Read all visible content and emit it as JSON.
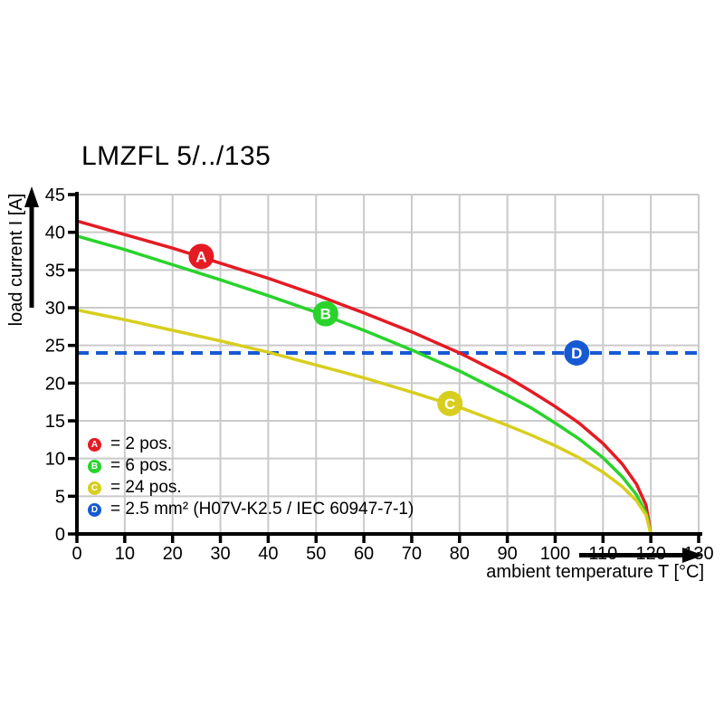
{
  "chart_data": {
    "type": "line",
    "title": "LMZFL 5/../135",
    "xlabel": "ambient temperature T [°C]",
    "ylabel": "load current I [A]",
    "xlim": [
      0,
      130
    ],
    "ylim": [
      0,
      45
    ],
    "x_ticks": [
      0,
      10,
      20,
      30,
      40,
      50,
      60,
      70,
      80,
      90,
      100,
      110,
      120,
      130
    ],
    "y_ticks": [
      0,
      5,
      10,
      15,
      20,
      25,
      30,
      35,
      40,
      45
    ],
    "grid": true,
    "grid_color": "#cacaca",
    "axis_color": "#000000",
    "series": [
      {
        "id": "A",
        "name": "2 pos.",
        "color": "#e41b23",
        "style": "solid",
        "marker_at": {
          "x": 26,
          "y": 36.8
        },
        "points": [
          [
            0,
            41.5
          ],
          [
            10,
            39.7
          ],
          [
            20,
            37.9
          ],
          [
            30,
            35.9
          ],
          [
            40,
            33.9
          ],
          [
            50,
            31.7
          ],
          [
            60,
            29.3
          ],
          [
            70,
            26.8
          ],
          [
            80,
            24
          ],
          [
            90,
            20.8
          ],
          [
            95,
            18.9
          ],
          [
            100,
            16.9
          ],
          [
            105,
            14.7
          ],
          [
            110,
            12
          ],
          [
            114,
            9.3
          ],
          [
            117,
            6.6
          ],
          [
            119,
            3.8
          ],
          [
            120,
            0
          ]
        ]
      },
      {
        "id": "B",
        "name": "6 pos.",
        "color": "#29d32b",
        "style": "solid",
        "marker_at": {
          "x": 52,
          "y": 29.2
        },
        "points": [
          [
            0,
            39.5
          ],
          [
            10,
            37.7
          ],
          [
            20,
            35.7
          ],
          [
            30,
            33.7
          ],
          [
            40,
            31.6
          ],
          [
            50,
            29.4
          ],
          [
            60,
            27
          ],
          [
            70,
            24.4
          ],
          [
            80,
            21.6
          ],
          [
            90,
            18.4
          ],
          [
            95,
            16.7
          ],
          [
            100,
            14.7
          ],
          [
            105,
            12.6
          ],
          [
            110,
            10.1
          ],
          [
            114,
            7.6
          ],
          [
            117,
            5.2
          ],
          [
            119,
            2.8
          ],
          [
            120,
            0
          ]
        ]
      },
      {
        "id": "C",
        "name": "24 pos.",
        "color": "#d7ce1f",
        "style": "solid",
        "marker_at": {
          "x": 78,
          "y": 17.3
        },
        "points": [
          [
            0,
            29.7
          ],
          [
            10,
            28.4
          ],
          [
            20,
            27
          ],
          [
            30,
            25.6
          ],
          [
            40,
            24.1
          ],
          [
            50,
            22.4
          ],
          [
            60,
            20.7
          ],
          [
            70,
            18.8
          ],
          [
            80,
            16.8
          ],
          [
            90,
            14.4
          ],
          [
            95,
            13.1
          ],
          [
            100,
            11.7
          ],
          [
            105,
            10.1
          ],
          [
            110,
            8.2
          ],
          [
            114,
            6.3
          ],
          [
            117,
            4.4
          ],
          [
            119,
            2.5
          ],
          [
            120,
            0
          ]
        ]
      },
      {
        "id": "D",
        "name": "2.5 mm² (H07V-K2.5 / IEC 60947-7-1)",
        "color": "#1659d2",
        "style": "dashed",
        "value": 24,
        "marker_at": {
          "x": 104.5,
          "y": 24
        },
        "points": [
          [
            0,
            24
          ],
          [
            130,
            24
          ]
        ]
      }
    ],
    "legend": {
      "position": "inside-bottom-left",
      "items": [
        {
          "series": "A",
          "label": "= 2 pos."
        },
        {
          "series": "B",
          "label": "= 6 pos."
        },
        {
          "series": "C",
          "label": "= 24 pos."
        },
        {
          "series": "D",
          "label": "= 2.5 mm² (H07V-K2.5 / IEC 60947-7-1)"
        }
      ]
    }
  }
}
